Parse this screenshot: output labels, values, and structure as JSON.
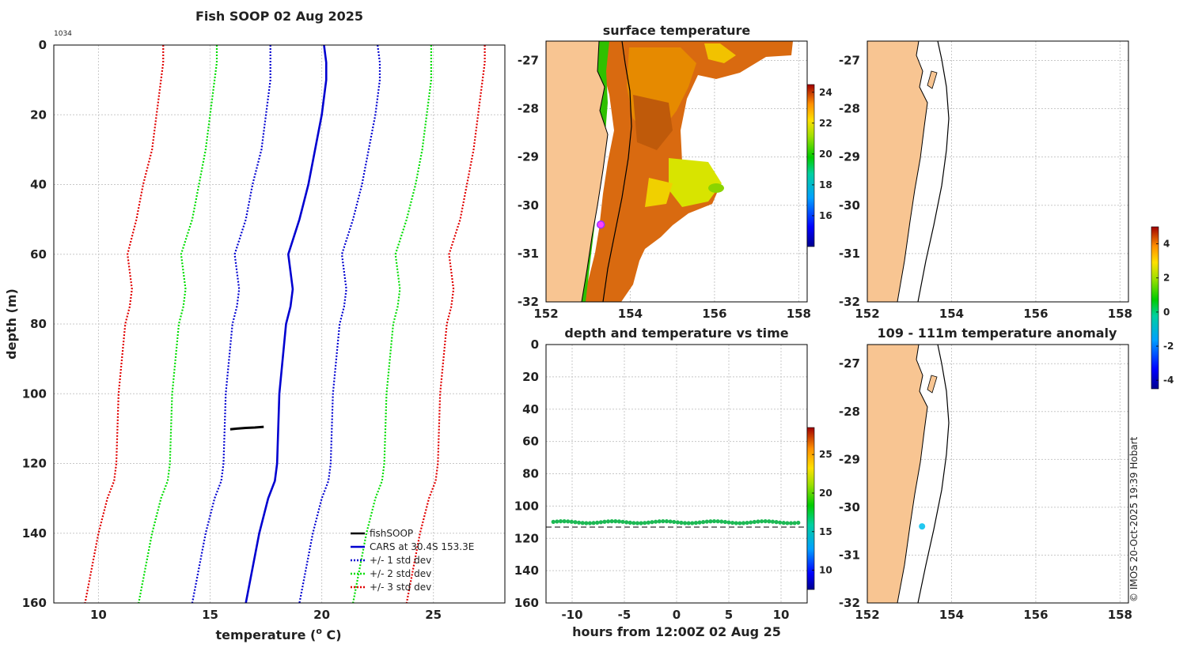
{
  "figure": {
    "left_title": "Fish SOOP 02 Aug 2025",
    "profile_id": "1034",
    "copyright": "© IMOS 20-Oct-2025 19:39 Hobart"
  },
  "chart_data": [
    {
      "id": "profile",
      "type": "line",
      "title": "Fish SOOP 02 Aug 2025",
      "xlabel": "temperature (",
      "xlabel_sup": "o",
      "xlabel_tail": " C)",
      "ylabel": "depth (m)",
      "xlim": [
        8,
        28.2
      ],
      "ylim": [
        0,
        160
      ],
      "y_reversed": true,
      "xticks": [
        10,
        15,
        20,
        25
      ],
      "yticks": [
        0,
        20,
        40,
        60,
        80,
        100,
        120,
        140,
        160
      ],
      "legend": [
        "fishSOOP",
        "CARS at 30.4S 153.3E",
        "+/- 1 std dev",
        "+/- 2 std dev",
        "+/- 3 std dev"
      ],
      "depth": [
        0,
        5,
        10,
        20,
        30,
        40,
        50,
        60,
        70,
        75,
        80,
        100,
        120,
        125,
        130,
        140,
        150,
        160
      ],
      "series": [
        {
          "name": "CARS at 30.4S 153.3E",
          "color": "#0000d0",
          "style": "solid",
          "values": [
            20.1,
            20.2,
            20.2,
            20.0,
            19.7,
            19.4,
            19.0,
            18.5,
            18.7,
            18.6,
            18.4,
            18.1,
            18.0,
            17.9,
            17.6,
            17.2,
            16.9,
            16.6
          ]
        },
        {
          "name": "-1 std",
          "color": "#0000d0",
          "style": "dotted",
          "values": [
            17.7,
            17.7,
            17.7,
            17.5,
            17.3,
            16.9,
            16.6,
            16.1,
            16.3,
            16.2,
            16.0,
            15.7,
            15.6,
            15.5,
            15.2,
            14.8,
            14.5,
            14.2
          ]
        },
        {
          "name": "+1 std",
          "color": "#0000d0",
          "style": "dotted",
          "values": [
            22.5,
            22.6,
            22.6,
            22.4,
            22.1,
            21.8,
            21.4,
            20.9,
            21.1,
            21.0,
            20.8,
            20.5,
            20.4,
            20.3,
            20.0,
            19.6,
            19.3,
            19.0
          ]
        },
        {
          "name": "-2 std",
          "color": "#00dd00",
          "style": "dotted",
          "values": [
            15.3,
            15.3,
            15.2,
            15.0,
            14.8,
            14.5,
            14.2,
            13.7,
            13.9,
            13.8,
            13.6,
            13.3,
            13.2,
            13.1,
            12.8,
            12.4,
            12.1,
            11.8
          ]
        },
        {
          "name": "+2 std",
          "color": "#00dd00",
          "style": "dotted",
          "values": [
            24.9,
            24.9,
            24.9,
            24.7,
            24.5,
            24.2,
            23.8,
            23.3,
            23.5,
            23.4,
            23.2,
            22.9,
            22.8,
            22.7,
            22.4,
            22.0,
            21.7,
            21.4
          ]
        },
        {
          "name": "-3 std",
          "color": "#e00000",
          "style": "dotted",
          "values": [
            12.9,
            12.9,
            12.8,
            12.6,
            12.4,
            12.0,
            11.7,
            11.3,
            11.5,
            11.4,
            11.2,
            10.9,
            10.8,
            10.7,
            10.4,
            10.0,
            9.7,
            9.4
          ]
        },
        {
          "name": "+3 std",
          "color": "#e00000",
          "style": "dotted",
          "values": [
            27.3,
            27.3,
            27.2,
            27.0,
            26.8,
            26.5,
            26.2,
            25.7,
            25.9,
            25.8,
            25.6,
            25.3,
            25.2,
            25.1,
            24.8,
            24.4,
            24.1,
            23.8
          ]
        }
      ],
      "fishSOOP": {
        "temperature": [
          15.9,
          16.2,
          16.6,
          17.0,
          17.4
        ],
        "depth": [
          110.2,
          110.0,
          109.8,
          109.7,
          109.5
        ]
      }
    },
    {
      "id": "sst_map",
      "type": "heatmap",
      "title": "surface temperature",
      "xlim": [
        152,
        158.2
      ],
      "ylim": [
        -32,
        -26.6
      ],
      "xticks": [
        152,
        154,
        156,
        158
      ],
      "yticks": [
        -27,
        -28,
        -29,
        -30,
        -31,
        -32
      ],
      "colorbar": {
        "ticks": [
          16,
          18,
          20,
          22,
          24
        ],
        "range": [
          14,
          24.5
        ]
      },
      "marker": {
        "lon": 153.3,
        "lat": -30.4,
        "color": "#cc33ff"
      }
    },
    {
      "id": "time_series",
      "type": "scatter",
      "title": "depth and temperature vs time",
      "xlabel": "hours from 12:00Z 02 Aug 25",
      "xlim": [
        -12.5,
        12.5
      ],
      "ylim": [
        0,
        160
      ],
      "y_reversed": true,
      "xticks": [
        -10,
        -5,
        0,
        5,
        10
      ],
      "yticks": [
        0,
        20,
        40,
        60,
        80,
        100,
        120,
        140,
        160
      ],
      "depth_band": 110,
      "bottom_line_depth": 113,
      "colorbar": {
        "ticks": [
          10,
          15,
          20,
          25
        ],
        "range": [
          7.5,
          28.5
        ]
      }
    },
    {
      "id": "empty_map",
      "type": "scatter",
      "title": "",
      "xlim": [
        152,
        158.2
      ],
      "ylim": [
        -32,
        -26.6
      ],
      "xticks": [
        152,
        154,
        156,
        158
      ],
      "yticks": [
        -27,
        -28,
        -29,
        -30,
        -31,
        -32
      ]
    },
    {
      "id": "anomaly_map",
      "type": "scatter",
      "title": "109 - 111m temperature anomaly",
      "xlim": [
        152,
        158.2
      ],
      "ylim": [
        -32,
        -26.6
      ],
      "xticks": [
        152,
        154,
        156,
        158
      ],
      "yticks": [
        -27,
        -28,
        -29,
        -30,
        -31,
        -32
      ],
      "point": {
        "lon": 153.3,
        "lat": -30.4,
        "color": "#22c8f0"
      },
      "colorbar": {
        "ticks": [
          -4,
          -2,
          0,
          2,
          4
        ],
        "range": [
          -4.5,
          5.0
        ]
      }
    }
  ]
}
